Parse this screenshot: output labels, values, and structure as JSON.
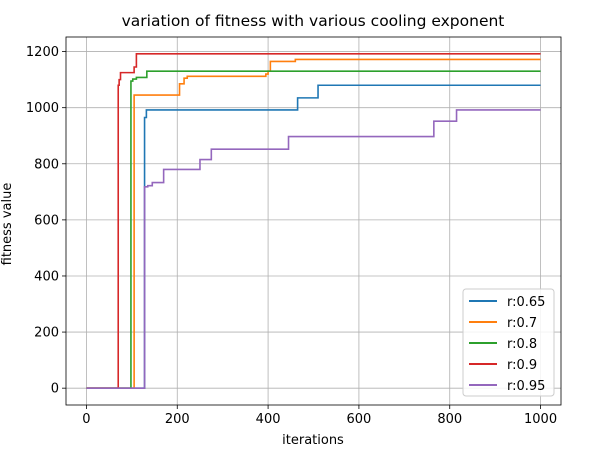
{
  "chart_data": {
    "type": "line",
    "title": "variation of fitness with various cooling exponent",
    "xlabel": "iterations",
    "ylabel": "fitness value",
    "xlim": [
      -45,
      1045
    ],
    "ylim": [
      -60,
      1252
    ],
    "xticks": [
      0,
      200,
      400,
      600,
      800,
      1000
    ],
    "yticks": [
      0,
      200,
      400,
      600,
      800,
      1000,
      1200
    ],
    "grid": true,
    "legend_position": "lower right",
    "step": "post",
    "series": [
      {
        "name": "r:0.65",
        "color": "#1f77b4",
        "x": [
          0,
          125,
          128,
          132,
          465,
          510,
          1000
        ],
        "y": [
          0,
          0,
          965,
          992,
          1035,
          1080,
          1080
        ]
      },
      {
        "name": "r:0.7",
        "color": "#ff7f0e",
        "x": [
          0,
          105,
          205,
          215,
          222,
          395,
          400,
          405,
          460,
          1000
        ],
        "y": [
          0,
          1045,
          1085,
          1105,
          1112,
          1120,
          1130,
          1165,
          1172,
          1172
        ]
      },
      {
        "name": "r:0.8",
        "color": "#2ca02c",
        "x": [
          0,
          98,
          102,
          110,
          128,
          133,
          1000
        ],
        "y": [
          0,
          1095,
          1102,
          1108,
          1108,
          1130,
          1130
        ]
      },
      {
        "name": "r:0.9",
        "color": "#d62728",
        "x": [
          0,
          70,
          72,
          75,
          105,
          110,
          1000
        ],
        "y": [
          0,
          1080,
          1100,
          1125,
          1145,
          1192,
          1192
        ]
      },
      {
        "name": "r:0.95",
        "color": "#9467bd",
        "x": [
          0,
          128,
          135,
          145,
          170,
          250,
          275,
          445,
          760,
          765,
          810,
          815,
          1000
        ],
        "y": [
          0,
          718,
          722,
          733,
          780,
          815,
          852,
          897,
          897,
          952,
          952,
          992,
          992
        ]
      }
    ]
  }
}
